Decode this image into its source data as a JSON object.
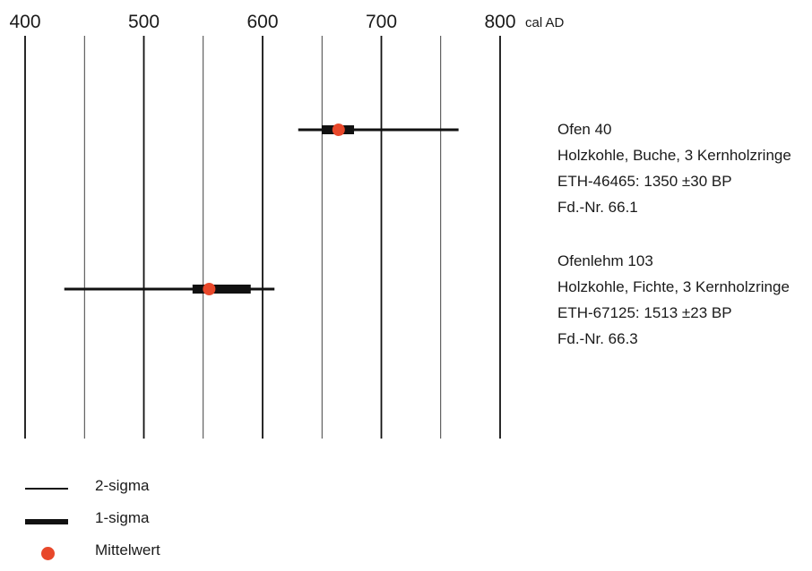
{
  "colors": {
    "axis": "#111111",
    "mean": "#e8482b",
    "text": "#1a1a1a"
  },
  "chart_data": {
    "type": "range",
    "x_unit_label": "cal AD",
    "xlim": [
      400,
      800
    ],
    "major_ticks": [
      400,
      500,
      600,
      700,
      800
    ],
    "minor_gridlines": [
      450,
      550,
      650,
      750
    ],
    "grid": true,
    "samples": [
      {
        "lines": [
          "Ofen 40",
          "Holzkohle, Buche, 3 Kernholzringe",
          "ETH-46465: 1350 ±30 BP",
          "Fd.-Nr. 66.1"
        ],
        "sigma2": [
          630,
          765
        ],
        "sigma1": [
          650,
          677
        ],
        "mean": 664
      },
      {
        "lines": [
          "Ofenlehm 103",
          "Holzkohle, Fichte, 3 Kernholzringe",
          "ETH-67125: 1513 ±23 BP",
          "Fd.-Nr. 66.3"
        ],
        "sigma2": [
          433,
          610
        ],
        "sigma1": [
          541,
          590
        ],
        "mean": 555
      }
    ],
    "legend": [
      {
        "symbol": "thin-line",
        "label": "2-sigma"
      },
      {
        "symbol": "thick-line",
        "label": "1-sigma"
      },
      {
        "symbol": "dot",
        "label": "Mittelwert"
      }
    ]
  }
}
